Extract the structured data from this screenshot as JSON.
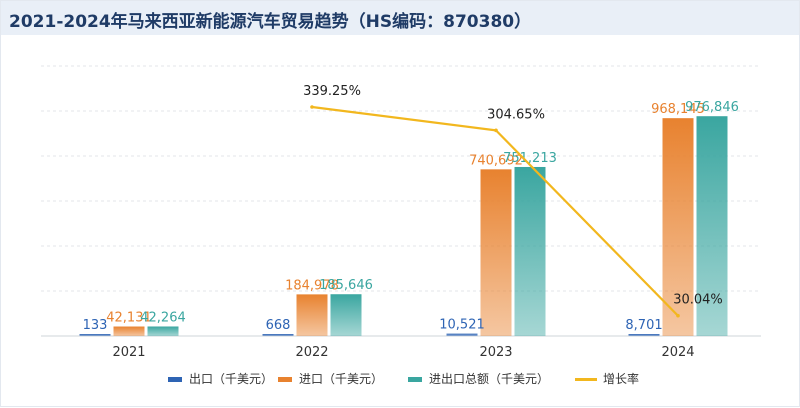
{
  "chart_data": {
    "title": "2021-2024年马来西亚新能源汽车贸易趋势（HS编码：870380）",
    "type": "bar",
    "categories": [
      "2021",
      "2022",
      "2023",
      "2024"
    ],
    "series": [
      {
        "name": "出口（千美元）",
        "type": "bar",
        "color": "#2e64b4",
        "values": [
          133,
          668,
          10521,
          8701
        ],
        "labels": [
          "133",
          "668",
          "10,521",
          "8,701"
        ]
      },
      {
        "name": "进口（千美元）",
        "type": "bar",
        "color": "#e8822f",
        "values": [
          42131,
          184978,
          740692,
          968145
        ],
        "labels": [
          "42,131",
          "184,978",
          "740,692",
          "968,145"
        ]
      },
      {
        "name": "进出口总额（千美元）",
        "type": "bar",
        "color": "#3aa6a0",
        "values": [
          42264,
          185646,
          751213,
          976846
        ],
        "labels": [
          "42,264",
          "185,646",
          "751,213",
          "976,846"
        ]
      },
      {
        "name": "增长率",
        "type": "line",
        "color": "#f2b71e",
        "values": [
          null,
          339.25,
          304.65,
          30.04
        ],
        "labels": [
          "",
          "339.25%",
          "304.65%",
          "30.04%"
        ]
      }
    ],
    "ylim_bar": [
      0,
      1200000
    ],
    "ylim_line": [
      0,
      400
    ],
    "grid": true,
    "legend": "bottom"
  }
}
